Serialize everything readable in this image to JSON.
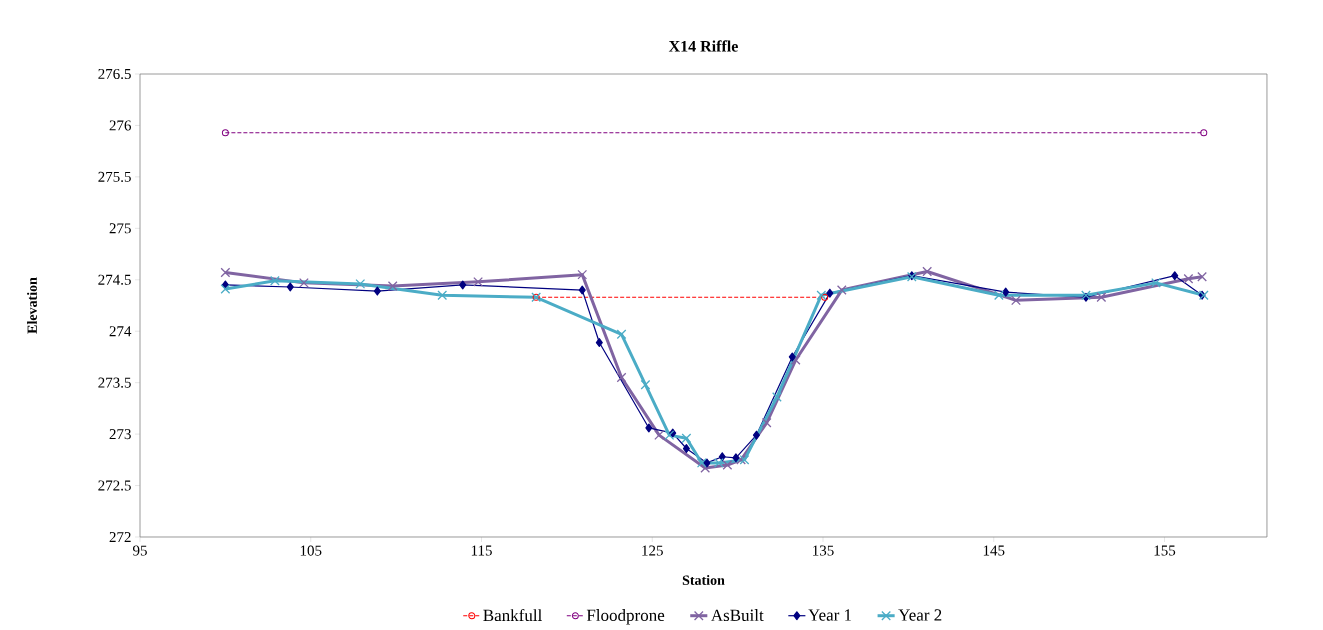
{
  "chart_data": {
    "type": "line",
    "title": "X14 Riffle",
    "xlabel": "Station",
    "ylabel": "Elevation",
    "xlim": [
      95,
      161
    ],
    "xticks": [
      95,
      105,
      115,
      125,
      135,
      145,
      155
    ],
    "ylim": [
      272,
      276.5
    ],
    "yticks": [
      272,
      272.5,
      273,
      273.5,
      274,
      274.5,
      275,
      275.5,
      276,
      276.5
    ],
    "legend": "bottom",
    "grid": false,
    "series": [
      {
        "name": "Bankfull",
        "color": "#ff0000",
        "marker": "circle",
        "line_style": "dashed",
        "x": [
          118.2,
          135.1
        ],
        "values": [
          274.33,
          274.33
        ]
      },
      {
        "name": "Floodprone",
        "color": "#800080",
        "marker": "circle",
        "line_style": "dashed",
        "x": [
          100,
          157.3
        ],
        "values": [
          275.93,
          275.93
        ]
      },
      {
        "name": "AsBuilt",
        "color": "#8064a2",
        "marker": "cross",
        "line_style": "solid",
        "x": [
          100,
          104.6,
          109.8,
          114.8,
          120.9,
          123.2,
          125.4,
          128.1,
          129.4,
          130.2,
          131.7,
          133.4,
          136.1,
          141.1,
          146.3,
          151.3,
          156.4,
          157.2
        ],
        "values": [
          274.57,
          274.47,
          274.44,
          274.48,
          274.55,
          273.55,
          272.99,
          272.67,
          272.7,
          272.75,
          273.11,
          273.72,
          274.4,
          274.58,
          274.3,
          274.33,
          274.51,
          274.53
        ]
      },
      {
        "name": "Year 1",
        "color": "#000080",
        "marker": "diamond",
        "line_style": "solid",
        "x": [
          100,
          103.8,
          108.9,
          113.9,
          120.9,
          121.9,
          124.8,
          126.2,
          127.0,
          128.2,
          129.1,
          129.9,
          131.1,
          133.2,
          135.4,
          140.2,
          145.7,
          150.4,
          155.6,
          157.2
        ],
        "values": [
          274.45,
          274.43,
          274.39,
          274.45,
          274.4,
          273.89,
          273.06,
          273.01,
          272.86,
          272.72,
          272.78,
          272.77,
          272.99,
          273.75,
          274.37,
          274.54,
          274.38,
          274.33,
          274.54,
          274.35
        ]
      },
      {
        "name": "Year 2",
        "color": "#4bacc6",
        "marker": "cross",
        "line_style": "solid",
        "x": [
          100,
          102.9,
          107.9,
          112.7,
          118.2,
          123.2,
          124.6,
          126.0,
          127.0,
          127.9,
          128.9,
          130.4,
          132.3,
          134.9,
          140.2,
          145.3,
          150.4,
          154.5,
          157.3
        ],
        "values": [
          274.41,
          274.49,
          274.46,
          274.35,
          274.33,
          273.97,
          273.48,
          272.99,
          272.96,
          272.72,
          272.72,
          272.75,
          273.36,
          274.35,
          274.53,
          274.35,
          274.35,
          274.47,
          274.35
        ]
      }
    ]
  }
}
